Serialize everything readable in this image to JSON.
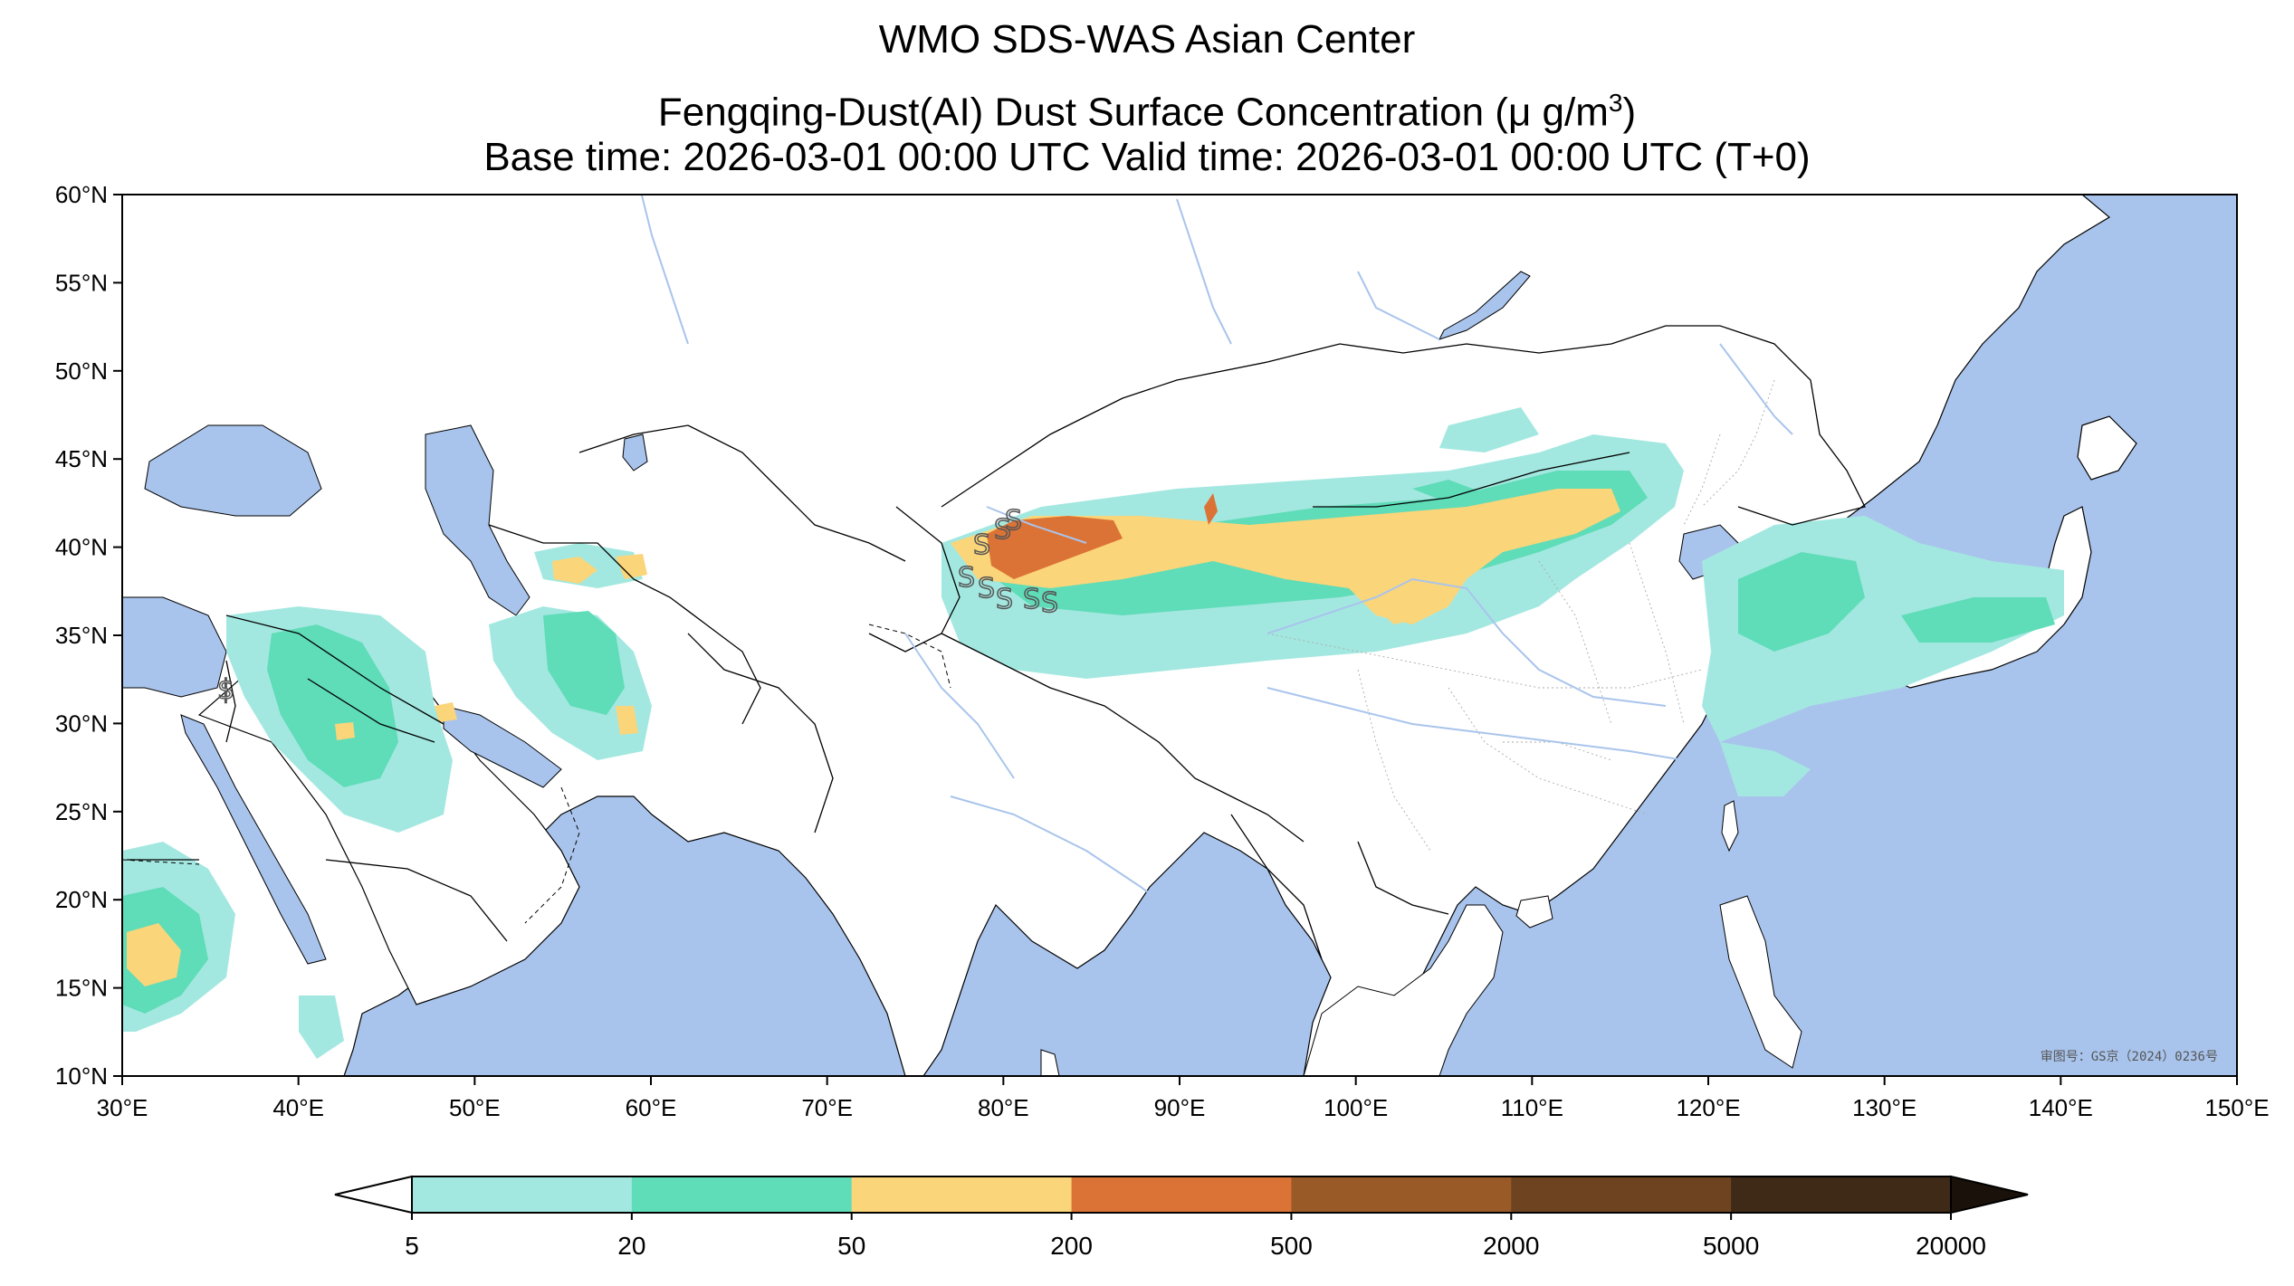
{
  "title": {
    "line1": "WMO SDS-WAS Asian Center",
    "line2_prefix": "Fengqing-Dust(AI) Dust Surface Concentration (",
    "line2_unit": "μ g/m",
    "line2_sup": "3",
    "line2_suffix": ")",
    "line3": "Base time: 2026-03-01 00:00 UTC Valid time: 2026-03-01 00:00 UTC (T+0)"
  },
  "axes": {
    "lon_range": [
      30,
      150
    ],
    "lat_range": [
      10,
      60
    ],
    "lon_ticks": [
      "30°E",
      "40°E",
      "50°E",
      "60°E",
      "70°E",
      "80°E",
      "90°E",
      "100°E",
      "110°E",
      "120°E",
      "130°E",
      "140°E",
      "150°E"
    ],
    "lat_ticks": [
      "60°N",
      "55°N",
      "50°N",
      "45°N",
      "40°N",
      "35°N",
      "30°N",
      "25°N",
      "20°N",
      "15°N",
      "10°N"
    ]
  },
  "colorbar": {
    "labels": [
      "5",
      "20",
      "50",
      "200",
      "500",
      "2000",
      "5000",
      "20000"
    ],
    "colors": [
      "#a3e8e0",
      "#5fdcb8",
      "#fad57a",
      "#dc7336",
      "#9a5a28",
      "#6e4420",
      "#3e2a16"
    ],
    "under_color": "#ffffff",
    "over_color": "#1a120a"
  },
  "review_mark": "审图号：GS京（2024）0236号",
  "colors": {
    "ocean": "#a9c4ec",
    "land": "#ffffff",
    "border": "#000000",
    "river": "#a9c4ec"
  }
}
